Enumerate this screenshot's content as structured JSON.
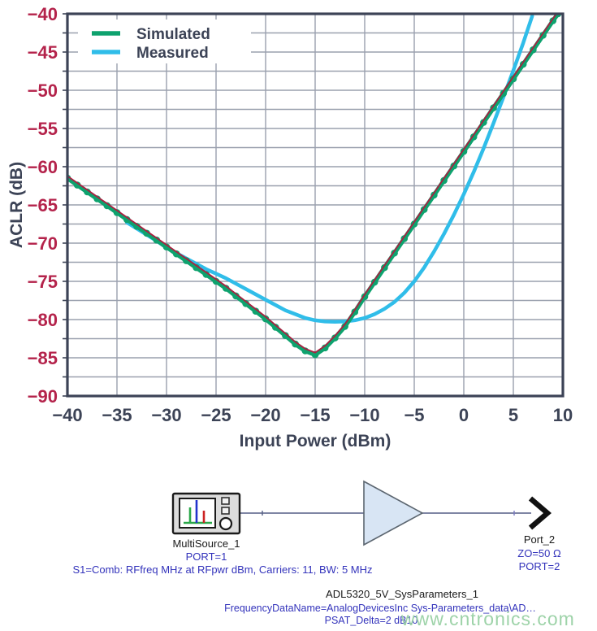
{
  "chart_data": {
    "type": "line",
    "title": "",
    "xlabel": "Input Power (dBm)",
    "ylabel": "ACLR (dB)",
    "xlim": [
      -40,
      10
    ],
    "ylim": [
      -90,
      -40
    ],
    "x_ticks": [
      -40,
      -35,
      -30,
      -25,
      -20,
      -15,
      -10,
      -5,
      0,
      5,
      10
    ],
    "y_ticks": [
      -40,
      -45,
      -50,
      -55,
      -60,
      -65,
      -70,
      -75,
      -80,
      -85,
      -90
    ],
    "x_grid_step": 5,
    "y_grid_step": 2.5,
    "grid": true,
    "legend_position": "top-left",
    "colors": {
      "grid": "#9AA0AE",
      "frame": "#3C4356",
      "y_tick_label": "#B4234B",
      "x_tick_label": "#3C4356",
      "simulated_marker": "#0EA26E",
      "simulated_line": "#A92040",
      "measured_line": "#30BDE9"
    },
    "series": [
      {
        "name": "Simulated",
        "style": "line-with-dot-markers",
        "marker_color": "#0EA26E",
        "line_color": "#A92040",
        "points": [
          [
            -40,
            -61.5
          ],
          [
            -39,
            -62.4
          ],
          [
            -38,
            -63.3
          ],
          [
            -37,
            -64.2
          ],
          [
            -36,
            -65.1
          ],
          [
            -35,
            -66.0
          ],
          [
            -34,
            -66.9
          ],
          [
            -33,
            -67.8
          ],
          [
            -32,
            -68.7
          ],
          [
            -31,
            -69.6
          ],
          [
            -30,
            -70.5
          ],
          [
            -29,
            -71.4
          ],
          [
            -28,
            -72.3
          ],
          [
            -27,
            -73.2
          ],
          [
            -26,
            -74.1
          ],
          [
            -25,
            -75.0
          ],
          [
            -24,
            -75.9
          ],
          [
            -23,
            -76.9
          ],
          [
            -22,
            -77.9
          ],
          [
            -21,
            -78.9
          ],
          [
            -20,
            -79.9
          ],
          [
            -19,
            -81.0
          ],
          [
            -18,
            -82.1
          ],
          [
            -17,
            -83.2
          ],
          [
            -16,
            -84.1
          ],
          [
            -15,
            -84.6
          ],
          [
            -14,
            -83.7
          ],
          [
            -13,
            -82.4
          ],
          [
            -12,
            -80.9
          ],
          [
            -11,
            -79.0
          ],
          [
            -10,
            -77.0
          ],
          [
            -9,
            -75.1
          ],
          [
            -8,
            -73.2
          ],
          [
            -7,
            -71.3
          ],
          [
            -6,
            -69.4
          ],
          [
            -5,
            -67.5
          ],
          [
            -4,
            -65.6
          ],
          [
            -3,
            -63.7
          ],
          [
            -2,
            -61.8
          ],
          [
            -1,
            -59.9
          ],
          [
            0,
            -58.0
          ],
          [
            1,
            -56.1
          ],
          [
            2,
            -54.2
          ],
          [
            3,
            -52.3
          ],
          [
            4,
            -50.4
          ],
          [
            5,
            -48.5
          ],
          [
            6,
            -46.6
          ],
          [
            7,
            -44.7
          ],
          [
            8,
            -42.8
          ],
          [
            9,
            -40.9
          ],
          [
            9.5,
            -40.0
          ]
        ]
      },
      {
        "name": "Measured",
        "style": "smooth-line",
        "line_color": "#30BDE9",
        "points": [
          [
            -34,
            -67.3
          ],
          [
            -33,
            -68.1
          ],
          [
            -32,
            -68.9
          ],
          [
            -31,
            -69.7
          ],
          [
            -30,
            -70.6
          ],
          [
            -29,
            -71.3
          ],
          [
            -28,
            -72.0
          ],
          [
            -27,
            -72.7
          ],
          [
            -26,
            -73.4
          ],
          [
            -25,
            -74.0
          ],
          [
            -24,
            -74.6
          ],
          [
            -23,
            -75.3
          ],
          [
            -22,
            -76.0
          ],
          [
            -21,
            -76.7
          ],
          [
            -20,
            -77.4
          ],
          [
            -19,
            -78.1
          ],
          [
            -18,
            -78.8
          ],
          [
            -17,
            -79.3
          ],
          [
            -16,
            -79.8
          ],
          [
            -15,
            -80.1
          ],
          [
            -14,
            -80.25
          ],
          [
            -13,
            -80.3
          ],
          [
            -12,
            -80.25
          ],
          [
            -11,
            -80.1
          ],
          [
            -10,
            -79.8
          ],
          [
            -9,
            -79.3
          ],
          [
            -8,
            -78.6
          ],
          [
            -7,
            -77.7
          ],
          [
            -6,
            -76.5
          ],
          [
            -5,
            -75.0
          ],
          [
            -4,
            -73.2
          ],
          [
            -3,
            -71.1
          ],
          [
            -2,
            -68.8
          ],
          [
            -1,
            -66.3
          ],
          [
            0,
            -63.6
          ],
          [
            1,
            -60.7
          ],
          [
            2,
            -57.6
          ],
          [
            3,
            -54.3
          ],
          [
            4,
            -50.9
          ],
          [
            5,
            -47.4
          ],
          [
            6,
            -43.8
          ],
          [
            6.9,
            -40.3
          ]
        ]
      }
    ]
  },
  "schematic": {
    "source": {
      "label": "MultiSource_1",
      "port_label": "PORT=1",
      "params": "S1=Comb: RFfreq MHz at RFpwr dBm, Carriers: 11, BW: 5 MHz"
    },
    "amplifier": {
      "label": "ADL5320_5V_SysParameters_1",
      "param1": "FrequencyDataName=AnalogDevicesInc Sys-Parameters_data\\AD…",
      "param2": "PSAT_Delta=2 dB10"
    },
    "output_port": {
      "label": "Port_2",
      "impedance": "ZO=50 Ω",
      "port_label": "PORT=2"
    }
  },
  "watermark": "www.cntronics.com"
}
